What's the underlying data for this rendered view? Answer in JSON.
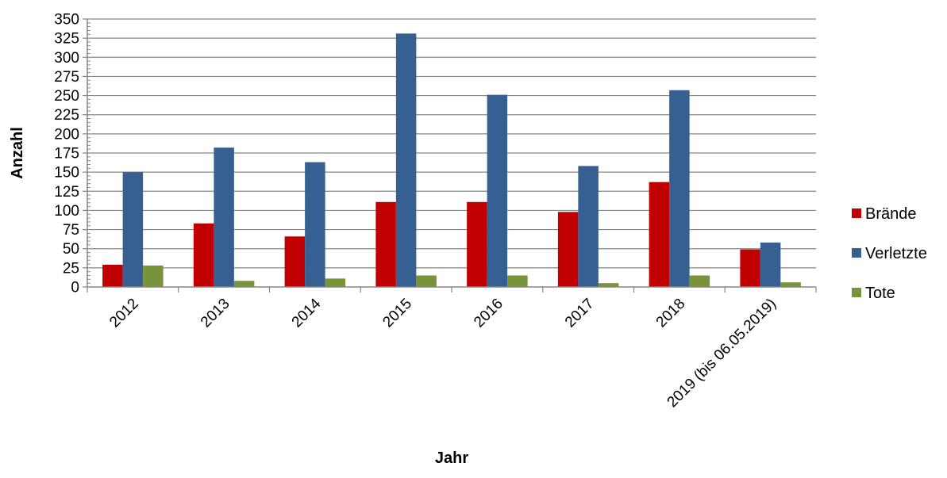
{
  "chart_data": {
    "type": "bar",
    "title": "",
    "xlabel": "Jahr",
    "ylabel": "Anzahl",
    "categories": [
      "2012",
      "2013",
      "2014",
      "2015",
      "2016",
      "2017",
      "2018",
      "2019 (bis 06.05.2019)"
    ],
    "series": [
      {
        "name": "Brände",
        "color": "#C00000",
        "values": [
          29,
          83,
          66,
          111,
          111,
          98,
          137,
          49
        ]
      },
      {
        "name": "Verletzte",
        "color": "#376092",
        "values": [
          150,
          182,
          163,
          331,
          251,
          158,
          257,
          58
        ]
      },
      {
        "name": "Tote",
        "color": "#77933C",
        "values": [
          28,
          8,
          11,
          15,
          15,
          5,
          15,
          6
        ]
      }
    ],
    "ylim": [
      0,
      350
    ],
    "yticks": [
      "0",
      "25",
      "50",
      "75",
      "100",
      "125",
      "150",
      "175",
      "200",
      "225",
      "250",
      "275",
      "300",
      "325",
      "350"
    ],
    "grid": true,
    "legend_position": "right"
  }
}
